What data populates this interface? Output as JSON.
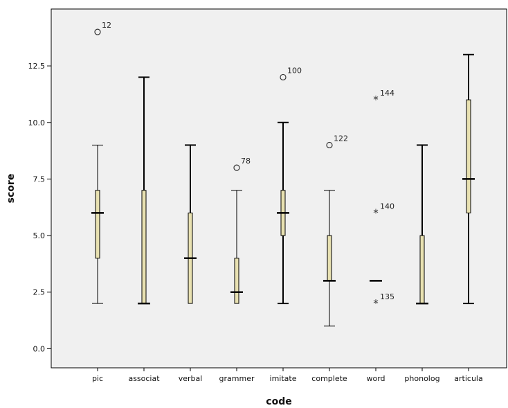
{
  "chart_data": {
    "type": "boxplot",
    "xlabel": "code",
    "ylabel": "score",
    "ylim": [
      -0.6,
      14.8
    ],
    "yticks": [
      "0.0",
      "2.5",
      "5.0",
      "7.5",
      "10.0",
      "12.5"
    ],
    "ytick_values": [
      0,
      2.5,
      5,
      7.5,
      10,
      12.5
    ],
    "grid": false,
    "categories": [
      "pic",
      "associat",
      "verbal",
      "grammer",
      "imitate",
      "complete",
      "word",
      "phonolog",
      "articula"
    ],
    "boxes": [
      {
        "category": "pic",
        "min": 2,
        "q1": 4,
        "median": 6,
        "q3": 7,
        "max": 9
      },
      {
        "category": "associat",
        "min": 2,
        "q1": 2,
        "median": 2,
        "q3": 7,
        "max": 12
      },
      {
        "category": "verbal",
        "min": 2,
        "q1": 2,
        "median": 4,
        "q3": 6,
        "max": 9
      },
      {
        "category": "grammer",
        "min": 2,
        "q1": 2,
        "median": 2.5,
        "q3": 4,
        "max": 7
      },
      {
        "category": "imitate",
        "min": 2,
        "q1": 5,
        "median": 6,
        "q3": 7,
        "max": 10
      },
      {
        "category": "complete",
        "min": 1,
        "q1": 3,
        "median": 3,
        "q3": 5,
        "max": 7
      },
      {
        "category": "word",
        "min": 3,
        "q1": 3,
        "median": 3,
        "q3": 3,
        "max": 3
      },
      {
        "category": "phonolog",
        "min": 2,
        "q1": 2,
        "median": 2,
        "q3": 5,
        "max": 9
      },
      {
        "category": "articula",
        "min": 2,
        "q1": 6,
        "median": 7.5,
        "q3": 11,
        "max": 13
      }
    ],
    "outliers": [
      {
        "category": "pic",
        "value": 14,
        "label": "12",
        "marker": "circle"
      },
      {
        "category": "grammer",
        "value": 8,
        "label": "78",
        "marker": "circle"
      },
      {
        "category": "imitate",
        "value": 12,
        "label": "100",
        "marker": "circle"
      },
      {
        "category": "complete",
        "value": 9,
        "label": "122",
        "marker": "circle"
      },
      {
        "category": "word",
        "value": 11,
        "label": "144",
        "marker": "star"
      },
      {
        "category": "word",
        "value": 6,
        "label": "140",
        "marker": "star"
      },
      {
        "category": "word",
        "value": 2,
        "label": "135",
        "marker": "star"
      }
    ],
    "colors": {
      "box_fill": "#e8e1b1",
      "plot_background": "#f0f0f0",
      "median": "#000000",
      "whisker": "#000000"
    }
  }
}
